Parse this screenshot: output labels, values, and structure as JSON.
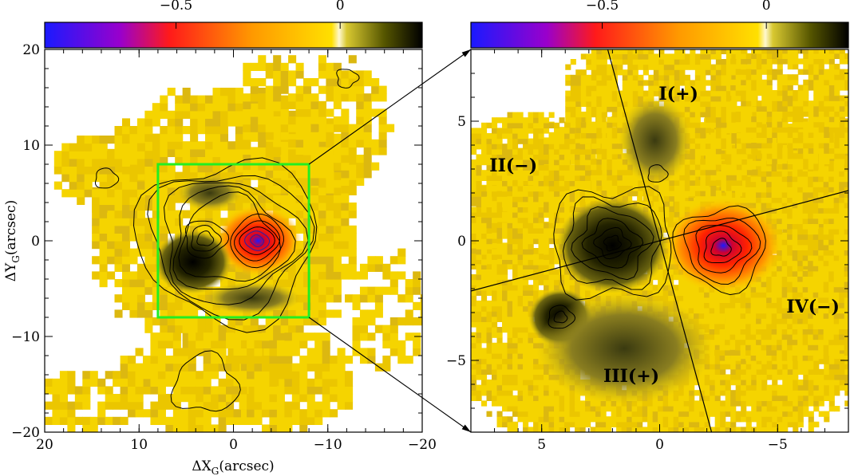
{
  "chart_data": [
    {
      "type": "heatmap",
      "panel": "left",
      "xlabel": "ΔX",
      "xlabel_sub": "G",
      "xlabel_unit": "(arcsec)",
      "ylabel": "ΔY",
      "ylabel_sub": "G",
      "ylabel_unit": "(arcsec)",
      "xlim": [
        20,
        -20
      ],
      "ylim": [
        -20,
        20
      ],
      "xticks": [
        {
          "value": 20,
          "label": "20"
        },
        {
          "value": 10,
          "label": "10"
        },
        {
          "value": 0,
          "label": "0"
        },
        {
          "value": -10,
          "label": "−10"
        },
        {
          "value": -20,
          "label": "−20"
        }
      ],
      "yticks": [
        {
          "value": 20,
          "label": "20"
        },
        {
          "value": 10,
          "label": "10"
        },
        {
          "value": 0,
          "label": "0"
        },
        {
          "value": -10,
          "label": "−10"
        },
        {
          "value": -20,
          "label": "−20"
        }
      ],
      "colorbar": {
        "range": [
          -0.9,
          0.25
        ],
        "ticks": [
          {
            "value": -0.5,
            "label": "−0.5"
          },
          {
            "value": 0,
            "label": "0"
          }
        ],
        "colors": [
          "#1a1aff",
          "#9900cc",
          "#ff1a1a",
          "#ff9900",
          "#ffe000",
          "#555500",
          "#000000"
        ]
      },
      "zoom_box": {
        "x": [
          8,
          -8
        ],
        "y": [
          -8,
          8
        ],
        "color": "#22ee22"
      },
      "features": [
        {
          "name": "red lobe",
          "x": -2.5,
          "y": 0,
          "value": -0.6
        },
        {
          "name": "dark lobe",
          "x": 4,
          "y": -3,
          "value": 0.2
        }
      ]
    },
    {
      "type": "heatmap",
      "panel": "right",
      "xlim": [
        8,
        -8
      ],
      "ylim": [
        -8,
        8
      ],
      "xticks": [
        {
          "value": 5,
          "label": "5"
        },
        {
          "value": 0,
          "label": "0"
        },
        {
          "value": -5,
          "label": "−5"
        }
      ],
      "yticks": [
        {
          "value": 5,
          "label": "5"
        },
        {
          "value": 0,
          "label": "0"
        },
        {
          "value": -5,
          "label": "−5"
        }
      ],
      "colorbar": {
        "range": [
          -0.9,
          0.25
        ],
        "ticks": [
          {
            "value": -0.5,
            "label": "−0.5"
          },
          {
            "value": 0,
            "label": "0"
          }
        ],
        "colors": [
          "#1a1aff",
          "#9900cc",
          "#ff1a1a",
          "#ff9900",
          "#ffe000",
          "#555500",
          "#000000"
        ]
      },
      "quadrant_labels": [
        {
          "text": "I(+)",
          "x": -0.8,
          "y": 5.9
        },
        {
          "text": "II(−)",
          "x": 6.2,
          "y": 2.9
        },
        {
          "text": "III(+)",
          "x": 1.2,
          "y": -5.9
        },
        {
          "text": "IV(−)",
          "x": -6.5,
          "y": -3
        }
      ],
      "axes_lines": [
        {
          "x1": 2.2,
          "y1": 8,
          "x2": -2.2,
          "y2": -8
        },
        {
          "x1": 8,
          "y1": -2.1,
          "x2": -8,
          "y2": 2.1
        }
      ],
      "features": [
        {
          "name": "red lobe",
          "x": -2.6,
          "y": -0.2,
          "value": -0.6
        },
        {
          "name": "dark core",
          "x": 2,
          "y": -0.2,
          "value": 0.2
        },
        {
          "name": "dark knot",
          "x": 4,
          "y": -3.3,
          "value": 0.15
        }
      ]
    }
  ]
}
